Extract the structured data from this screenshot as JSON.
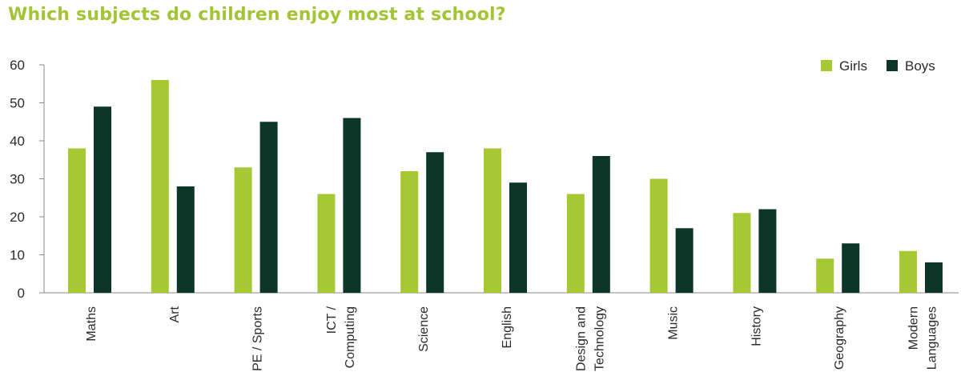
{
  "title": "Which subjects do children enjoy most at school?",
  "colors": {
    "girls": "#a6c832",
    "boys": "#0b3628",
    "title": "#a2c435",
    "axis": "#888888",
    "text": "#2b2b2b"
  },
  "chart_data": {
    "type": "bar",
    "title": "Which subjects do children enjoy most at school?",
    "xlabel": "",
    "ylabel": "",
    "ylim": [
      0,
      60
    ],
    "yticks": [
      0,
      10,
      20,
      30,
      40,
      50,
      60
    ],
    "grid": false,
    "legend_position": "top-right",
    "categories": [
      "Maths",
      "Art",
      "PE / Sports",
      "ICT / Computing",
      "Science",
      "English",
      "Design and Technology",
      "Music",
      "History",
      "Geography",
      "Modern Languages"
    ],
    "category_lines": [
      [
        "Maths"
      ],
      [
        "Art"
      ],
      [
        "PE / Sports"
      ],
      [
        "ICT /",
        "Computing"
      ],
      [
        "Science"
      ],
      [
        "English"
      ],
      [
        "Design and",
        "Technology"
      ],
      [
        "Music"
      ],
      [
        "History"
      ],
      [
        "Geography"
      ],
      [
        "Modern",
        "Languages"
      ]
    ],
    "series": [
      {
        "name": "Girls",
        "color": "#a6c832",
        "values": [
          38,
          56,
          33,
          26,
          32,
          38,
          26,
          30,
          21,
          9,
          11
        ]
      },
      {
        "name": "Boys",
        "color": "#0b3628",
        "values": [
          49,
          28,
          45,
          46,
          37,
          29,
          36,
          17,
          22,
          13,
          8
        ]
      }
    ]
  }
}
